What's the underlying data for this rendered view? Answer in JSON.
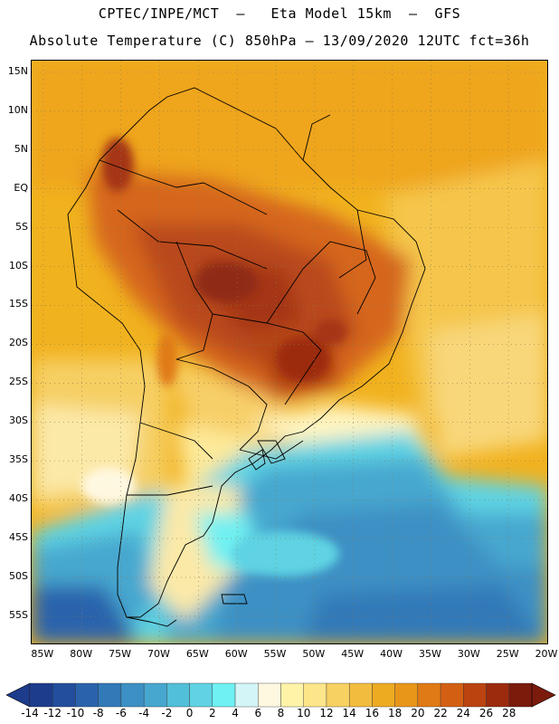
{
  "header": {
    "title_line1": "CPTEC/INPE/MCT  –   Eta Model 15km  –  GFS",
    "title_line2": "Absolute Temperature (C) 850hPa – 13/09/2020 12UTC fct=36h"
  },
  "map": {
    "lat_labels": [
      "15N",
      "10N",
      "5N",
      "EQ",
      "5S",
      "10S",
      "15S",
      "20S",
      "25S",
      "30S",
      "35S",
      "40S",
      "45S",
      "50S",
      "55S"
    ],
    "lon_labels": [
      "85W",
      "80W",
      "75W",
      "70W",
      "65W",
      "60W",
      "55W",
      "50W",
      "45W",
      "40W",
      "35W",
      "30W",
      "25W",
      "20W"
    ],
    "extent": {
      "lon_min": -86.5,
      "lon_max": -20,
      "lat_min": -58.5,
      "lat_max": 16.5
    }
  },
  "colorbar": {
    "labels": [
      "-14",
      "-12",
      "-10",
      "-8",
      "-6",
      "-4",
      "-2",
      "0",
      "2",
      "4",
      "6",
      "8",
      "10",
      "12",
      "14",
      "16",
      "18",
      "20",
      "22",
      "24",
      "26",
      "28"
    ],
    "colors": [
      "#1d3c8c",
      "#234e9d",
      "#2a63ac",
      "#3279b8",
      "#3c90c4",
      "#47a7cf",
      "#52bfd9",
      "#5fd3e3",
      "#6ff0f2",
      "#d4f5f8",
      "#fff8e1",
      "#fff3a8",
      "#fde68a",
      "#f8d163",
      "#f2bd3f",
      "#edab22",
      "#e8961a",
      "#e07a14",
      "#d36012",
      "#bb4310",
      "#9c2b0e",
      "#7a1b0c"
    ],
    "low_color": "#1d3c8c",
    "high_color": "#7a1b0c"
  }
}
